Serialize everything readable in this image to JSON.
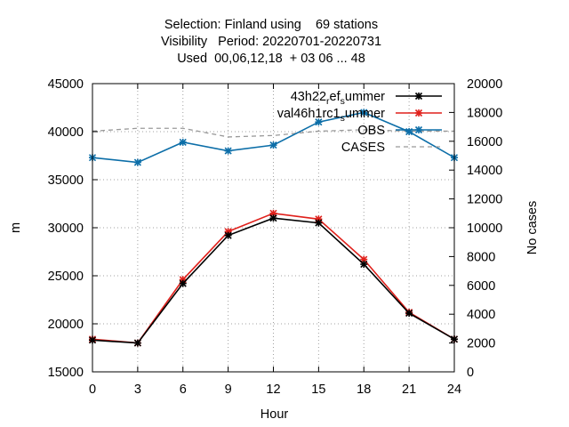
{
  "chart_data": {
    "type": "line",
    "title_lines": [
      "Selection: Finland using    69 stations",
      "Visibility   Period: 20220701-20220731",
      "Used  00,06,12,18  + 03 06 ... 48"
    ],
    "xlabel": "Hour",
    "ylabel": "m",
    "y2label": "No cases",
    "x": [
      0,
      3,
      6,
      9,
      12,
      15,
      18,
      21,
      24
    ],
    "xlim": [
      0,
      24
    ],
    "xticks": [
      "0",
      "3",
      "6",
      "9",
      "12",
      "15",
      "18",
      "21",
      "24"
    ],
    "ylim": [
      15000,
      45000
    ],
    "yticks": [
      "15000",
      "20000",
      "25000",
      "30000",
      "35000",
      "40000",
      "45000"
    ],
    "y2lim": [
      0,
      20000
    ],
    "y2ticks": [
      "0",
      "2000",
      "4000",
      "6000",
      "8000",
      "10000",
      "12000",
      "14000",
      "16000",
      "18000",
      "20000"
    ],
    "grid": true,
    "legend_position": "top-right",
    "series": [
      {
        "name": "43h22_ref_summer",
        "label_parts": [
          {
            "text": "43h22",
            "sub": false
          },
          {
            "text": "r",
            "sub": true
          },
          {
            "text": "ef",
            "sub": false
          },
          {
            "text": "s",
            "sub": true
          },
          {
            "text": "ummer",
            "sub": false
          }
        ],
        "color": "#000000",
        "marker": "cross",
        "axis": "y",
        "values": [
          18300,
          18000,
          24200,
          29200,
          31000,
          30500,
          26200,
          21100,
          18400
        ]
      },
      {
        "name": "val46h1rc1_summer",
        "label_parts": [
          {
            "text": "val46h1rc1",
            "sub": false
          },
          {
            "text": "s",
            "sub": true
          },
          {
            "text": "ummer",
            "sub": false
          }
        ],
        "color": "#e0201b",
        "marker": "cross",
        "axis": "y",
        "values": [
          18400,
          18000,
          24600,
          29600,
          31500,
          30900,
          26700,
          21200,
          18400
        ]
      },
      {
        "name": "OBS",
        "label_parts": [
          {
            "text": "OBS",
            "sub": false
          }
        ],
        "color": "#0c6ea8",
        "marker": "cross",
        "axis": "y",
        "values": [
          37300,
          36800,
          38900,
          38000,
          38600,
          41000,
          42000,
          40000,
          37300
        ]
      },
      {
        "name": "CASES",
        "label_parts": [
          {
            "text": "CASES",
            "sub": false
          }
        ],
        "color": "#999999",
        "dashed": true,
        "marker": "none",
        "axis": "y2",
        "values": [
          16700,
          16900,
          16900,
          16300,
          16400,
          16700,
          16800,
          16700,
          16700
        ]
      }
    ]
  }
}
